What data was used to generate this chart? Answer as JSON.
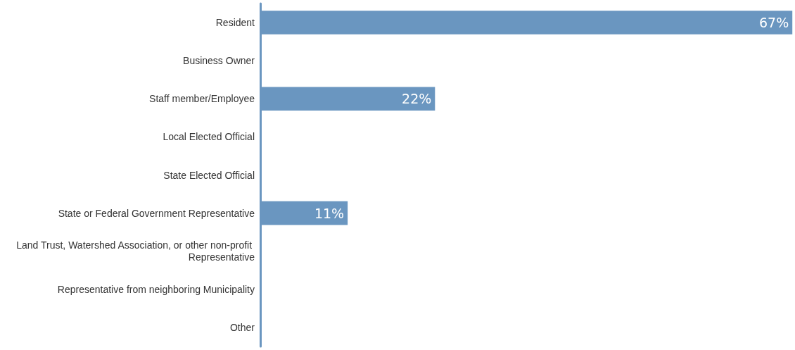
{
  "chart_data": {
    "type": "bar",
    "orientation": "horizontal",
    "categories": [
      "Resident",
      "Business Owner",
      "Staff member/Employee",
      "Local Elected Official",
      "State Elected Official",
      "State or Federal Government Representative",
      "Land Trust, Watershed Association, or other non-profit Representative",
      "Representative from neighboring Municipality",
      "Other"
    ],
    "values": [
      67,
      0,
      22,
      0,
      0,
      11,
      0,
      0,
      0
    ],
    "value_labels": [
      "67%",
      null,
      "22%",
      null,
      null,
      "11%",
      null,
      null,
      null
    ],
    "color": "#6a96c0"
  }
}
